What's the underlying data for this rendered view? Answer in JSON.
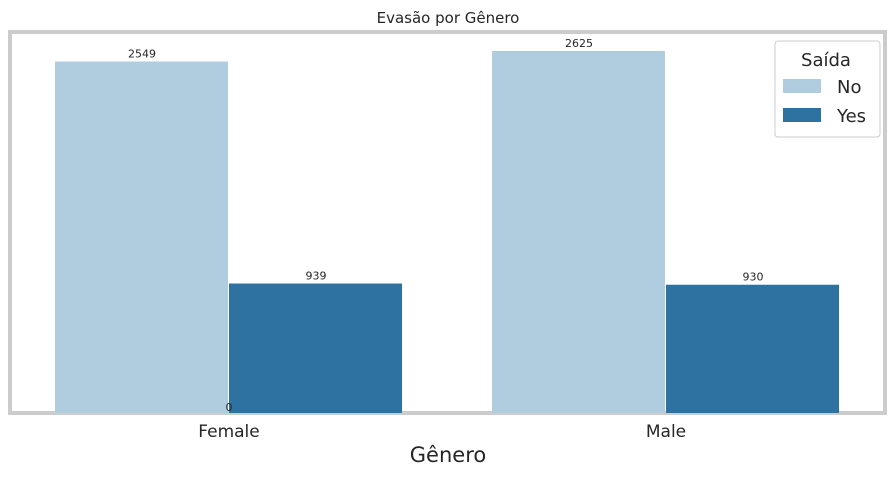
{
  "chart_data": {
    "type": "bar",
    "title": "Evasão por Gênero",
    "xlabel": "Gênero",
    "ylabel": "",
    "categories": [
      "Female",
      "Male"
    ],
    "series": [
      {
        "name": "No",
        "values": [
          2549,
          2625
        ],
        "color": "#b0cde0"
      },
      {
        "name": "Yes",
        "values": [
          939,
          930
        ],
        "color": "#2e72a2"
      }
    ],
    "ylim": [
      0,
      2800
    ],
    "extra_labels": [
      "0"
    ],
    "legend": {
      "title": "Saída",
      "placement": "top-right"
    },
    "grid": false,
    "frame_color": "#cccccc"
  }
}
